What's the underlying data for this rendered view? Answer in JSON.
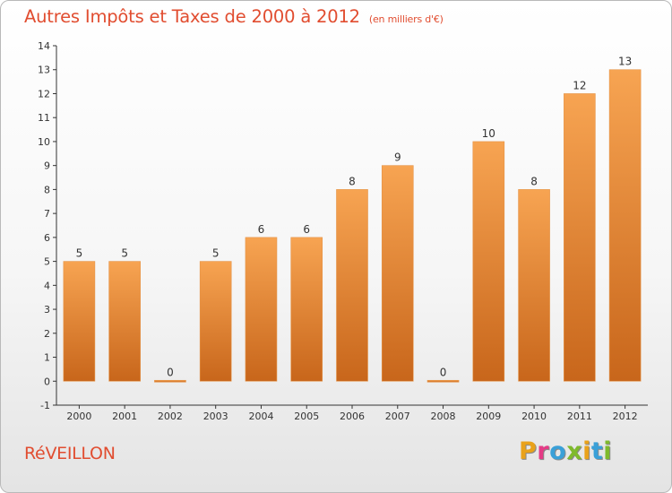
{
  "header": {
    "title": "Autres Impôts et Taxes de 2000 à 2012",
    "subtitle": "(en milliers d'€)"
  },
  "footer": {
    "commune": "RéVEILLON",
    "logo": [
      "P",
      "r",
      "o",
      "x",
      "i",
      "t",
      "i"
    ],
    "logo_colors": [
      "#e9a21b",
      "#e53b86",
      "#3aa0d8",
      "#7fba2c",
      "#e9a21b",
      "#3aa0d8",
      "#7fba2c"
    ]
  },
  "chart_data": {
    "type": "bar",
    "title": "Autres Impôts et Taxes de 2000 à 2012",
    "subtitle": "(en milliers d'€)",
    "categories": [
      "2000",
      "2001",
      "2002",
      "2003",
      "2004",
      "2005",
      "2006",
      "2007",
      "2008",
      "2009",
      "2010",
      "2011",
      "2012"
    ],
    "values": [
      5,
      5,
      0,
      5,
      6,
      6,
      8,
      9,
      0,
      10,
      8,
      12,
      13
    ],
    "ylim": [
      -1,
      14
    ],
    "yticks": [
      "-1",
      "0",
      "1",
      "2",
      "3",
      "4",
      "5",
      "6",
      "7",
      "8",
      "9",
      "10",
      "11",
      "12",
      "13",
      "14"
    ],
    "grid": false,
    "bar_color_top": "#f7a452",
    "bar_color_bottom": "#c8661b"
  }
}
